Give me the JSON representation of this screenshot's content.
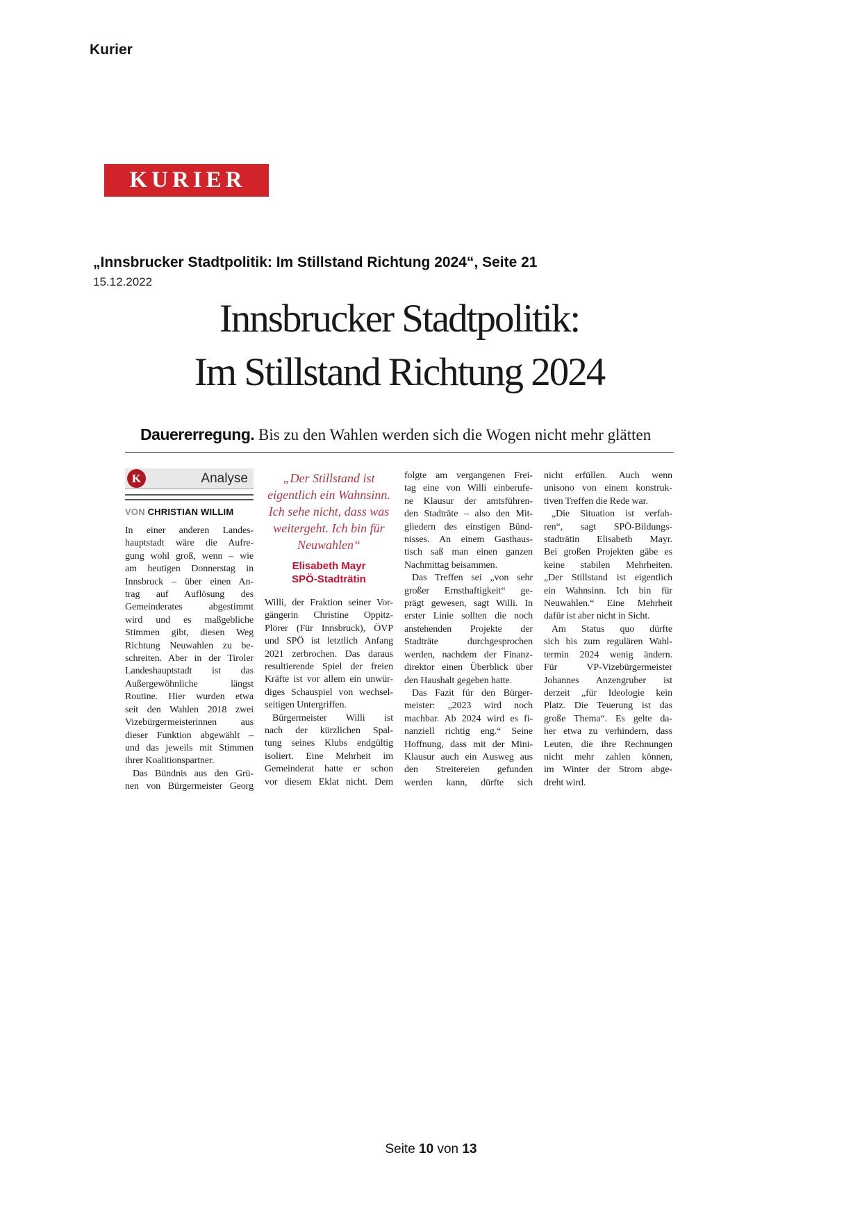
{
  "page": {
    "source_label": "Kurier",
    "logo_text": "KURIER",
    "footer": {
      "prefix": "Seite",
      "page_number": "10",
      "separator": "von",
      "total_pages": "13"
    }
  },
  "colors": {
    "brand_red": "#d2232a",
    "badge_red": "#b11722",
    "quote_red": "#a93a44",
    "attribution_red": "#c8102e"
  },
  "ref": {
    "headline": "„Innsbrucker Stadtpolitik: Im Stillstand Richtung 2024“, Seite 21",
    "date": "15.12.2022"
  },
  "article": {
    "headline_lines": [
      "Innsbrucker Stadtpolitik:",
      "Im Stillstand Richtung 2024"
    ],
    "subtitle": {
      "lead": "Dauererregung.",
      "text": " Bis zu den Wahlen werden sich die Wogen nicht mehr glätten"
    },
    "kicker": {
      "logo_letter": "K",
      "label": "Analyse"
    },
    "byline": {
      "prefix": "VON ",
      "author": "CHRISTIAN WILLIM"
    },
    "pullquote": {
      "lines": [
        "„Der Stillstand ist",
        "eigentlich ein Wahnsinn.",
        "Ich sehe nicht, dass was",
        "weitergeht. Ich bin für",
        "Neuwahlen“"
      ],
      "attribution_name": "Elisabeth Mayr",
      "attribution_role": "SPÖ-Stadträtin"
    },
    "columns": [
      {
        "lines": [
          "In einer anderen Landes-",
          "hauptstadt wäre die Aufre-",
          "gung wohl groß, wenn – wie",
          "am heutigen Donnerstag in",
          "Innsbruck – über einen An-",
          "trag auf Auflösung des",
          "Gemeinderates abgestimmt",
          "wird und es maßgebliche",
          "Stimmen gibt, diesen Weg",
          "Richtung Neuwahlen zu be-",
          "schreiten. Aber in der Tiroler",
          "Landeshauptstadt ist das",
          "Außergewöhnliche längst",
          "Routine. Hier wurden etwa",
          "seit den Wahlen 2018 zwei",
          "Vizebürgermeisterinnen aus",
          "dieser Funktion abgewählt –",
          "und das jeweils mit Stimmen",
          "ihrer Koalitionspartner.",
          "Das Bündnis aus den Grü-",
          "nen von Bürgermeister Georg"
        ],
        "para_start": [
          19
        ],
        "para_end": [
          18
        ]
      },
      {
        "lines": [
          "Willi, der Fraktion seiner Vor-",
          "gängerin Christine Oppitz-",
          "Plörer (Für Innsbruck), ÖVP",
          "und SPÖ ist letztlich Anfang",
          "2021 zerbrochen. Das daraus",
          "resultierende Spiel der freien",
          "Kräfte ist vor allem ein unwür-",
          "diges Schauspiel von wechsel-",
          "seitigen Untergriffen.",
          "Bürgermeister Willi ist",
          "nach der kürzlichen Spal-",
          "tung seines Klubs endgültig",
          "isoliert. Eine Mehrheit im",
          "Gemeinderat hatte er schon",
          "vor diesem Eklat nicht. Dem"
        ],
        "para_start": [
          9
        ],
        "para_end": [
          8
        ]
      },
      {
        "lines": [
          "folgte am vergangenen Frei-",
          "tag eine von Willi einberufe-",
          "ne Klausur der amtsführen-",
          "den Stadträte – also den Mit-",
          "gliedern des einstigen Bünd-",
          "nisses. An einem Gasthaus-",
          "tisch saß man einen ganzen",
          "Nachmittag beisammen.",
          "Das Treffen sei „von sehr",
          "großer Ernsthaftigkeit“ ge-",
          "prägt gewesen, sagt Willi. In",
          "erster Linie sollten die noch",
          "anstehenden Projekte der",
          "Stadträte durchgesprochen",
          "werden, nachdem der Finanz-",
          "direktor einen Überblick über",
          "den Haushalt gegeben hatte.",
          "Das Fazit für den Bürger-",
          "meister: „2023 wird noch",
          "machbar. Ab 2024 wird es fi-",
          "nanziell richtig eng.“ Seine",
          "Hoffnung, dass mit der Mini-",
          "Klausur auch ein Ausweg aus",
          "den Streitereien gefunden",
          "werden kann, dürfte sich"
        ],
        "para_start": [
          8,
          17
        ],
        "para_end": [
          7,
          16
        ]
      },
      {
        "lines": [
          "nicht erfüllen. Auch wenn",
          "unisono von einem konstruk-",
          "tiven Treffen die Rede war.",
          "„Die Situation ist verfah-",
          "ren“, sagt SPÖ-Bildungs-",
          "stadträtin Elisabeth Mayr.",
          "Bei großen Projekten gäbe es",
          "keine stabilen Mehrheiten.",
          "„Der Stillstand ist eigentlich",
          "ein Wahnsinn. Ich bin für",
          "Neuwahlen.“ Eine Mehrheit",
          "dafür ist aber nicht in Sicht.",
          "Am Status quo dürfte",
          "sich bis zum regulären Wahl-",
          "termin 2024 wenig ändern.",
          "Für VP-Vizebürgermeister",
          "Johannes Anzengruber ist",
          "derzeit „für Ideologie kein",
          "Platz. Die Teuerung ist das",
          "große Thema“. Es gelte da-",
          "her etwa zu verhindern, dass",
          "Leuten, die ihre Rechnungen",
          "nicht mehr zahlen können,",
          "im Winter der Strom abge-",
          "dreht wird."
        ],
        "para_start": [
          3,
          12
        ],
        "para_end": [
          2,
          11,
          24
        ]
      }
    ]
  }
}
